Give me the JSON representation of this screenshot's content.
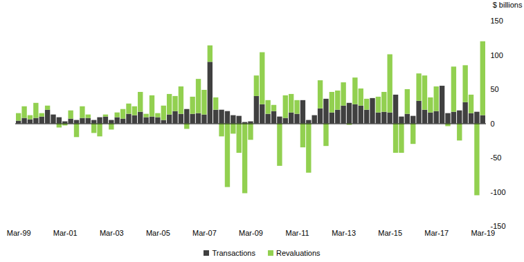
{
  "chart_data": {
    "type": "bar",
    "stacked": true,
    "legend": "bottom",
    "y_label": "$ billions",
    "categories": [
      "Mar-99",
      null,
      null,
      null,
      null,
      null,
      null,
      null,
      "Mar-01",
      null,
      null,
      null,
      null,
      null,
      null,
      null,
      "Mar-03",
      null,
      null,
      null,
      null,
      null,
      null,
      null,
      "Mar-05",
      null,
      null,
      null,
      null,
      null,
      null,
      null,
      "Mar-07",
      null,
      null,
      null,
      null,
      null,
      null,
      null,
      "Mar-09",
      null,
      null,
      null,
      null,
      null,
      null,
      null,
      "Mar-11",
      null,
      null,
      null,
      null,
      null,
      null,
      null,
      "Mar-13",
      null,
      null,
      null,
      null,
      null,
      null,
      null,
      "Mar-15",
      null,
      null,
      null,
      null,
      null,
      null,
      null,
      "Mar-17",
      null,
      null,
      null,
      null,
      null,
      null,
      null,
      "Mar-19"
    ],
    "series": [
      {
        "name": "Transactions",
        "color": "#404040",
        "values": [
          4,
          8,
          6,
          8,
          10,
          20,
          13,
          9,
          3,
          7,
          5,
          8,
          8,
          5,
          9,
          10,
          5,
          9,
          7,
          14,
          12,
          17,
          9,
          10,
          9,
          5,
          13,
          18,
          14,
          21,
          14,
          15,
          13,
          90,
          20,
          20,
          18,
          12,
          11,
          2,
          3,
          40,
          28,
          14,
          18,
          10,
          8,
          16,
          14,
          34,
          5,
          12,
          22,
          36,
          16,
          20,
          26,
          30,
          28,
          26,
          20,
          37,
          16,
          17,
          16,
          42,
          10,
          14,
          11,
          33,
          20,
          16,
          18,
          55,
          15,
          17,
          19,
          31,
          15,
          17,
          12
        ]
      },
      {
        "name": "Revaluations",
        "color": "#92d050",
        "values": [
          11,
          17,
          6,
          22,
          5,
          6,
          0,
          -6,
          -3,
          12,
          -20,
          17,
          5,
          -14,
          -19,
          3,
          -9,
          7,
          14,
          15,
          13,
          29,
          5,
          31,
          6,
          21,
          30,
          22,
          40,
          -8,
          25,
          50,
          36,
          24,
          18,
          -19,
          -93,
          -15,
          -43,
          -102,
          -24,
          30,
          76,
          20,
          9,
          -62,
          33,
          27,
          20,
          -35,
          -72,
          0,
          41,
          -33,
          30,
          28,
          34,
          -2,
          39,
          25,
          16,
          0,
          23,
          29,
          85,
          -43,
          -43,
          36,
          -30,
          40,
          50,
          22,
          36,
          0,
          -4,
          66,
          -25,
          54,
          27,
          -105,
          108
        ]
      }
    ],
    "ylim": [
      -150,
      150
    ],
    "yticks": [
      -150,
      -100,
      -50,
      0,
      50,
      100,
      150
    ],
    "grid": false
  }
}
